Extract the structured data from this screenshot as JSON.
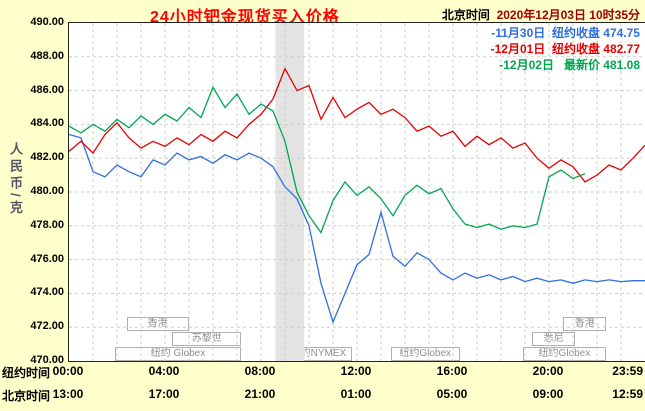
{
  "title": "24小时钯金现货买入价格",
  "timestamp": {
    "label": "北京时间  ",
    "value": "2020年12月03日 10时35分"
  },
  "colors": {
    "background": "#ffffcc",
    "plot_background": "#ffffff",
    "grid": "#c8d0c8",
    "band": "#e3e3e3",
    "title": "#ff0000",
    "series_blue": "#2f6fdf",
    "series_red": "#e80000",
    "series_green": "#00a651"
  },
  "chart_data": {
    "type": "line",
    "title": "24小时钯金现货买入价格",
    "ylabel": "人民币/克",
    "ylim": [
      470,
      490
    ],
    "y_ticks": [
      "490.00",
      "488.00",
      "486.00",
      "484.00",
      "482.00",
      "480.00",
      "478.00",
      "476.00",
      "474.00",
      "472.00",
      "470.00"
    ],
    "x_hours_range": [
      0,
      24
    ],
    "tick_hours": [
      0,
      4,
      8,
      12,
      16,
      20,
      24
    ],
    "x_axis_rows": [
      {
        "label": "纽约时间",
        "ticks": [
          "00:00",
          "04:00",
          "08:00",
          "12:00",
          "16:00",
          "20:00",
          "23:59"
        ]
      },
      {
        "label": "北京时间",
        "ticks": [
          "13:00",
          "17:00",
          "21:00",
          "01:00",
          "05:00",
          "09:00",
          "12:59"
        ]
      }
    ],
    "grid": true,
    "legend_position": "top-right",
    "shaded_band_hours": [
      8.6,
      9.8
    ],
    "series": [
      {
        "name": "11月30日",
        "status": "纽约收盘",
        "close": "474.75",
        "color": "#2f6fdf",
        "start_hour": 0,
        "step_hours": 0.5,
        "values": [
          483.4,
          483.2,
          481.2,
          480.9,
          481.6,
          481.2,
          480.9,
          481.9,
          481.6,
          482.3,
          481.9,
          482.1,
          481.7,
          482.2,
          481.9,
          482.3,
          482.0,
          481.5,
          480.3,
          479.6,
          478.0,
          474.6,
          472.3,
          474.0,
          475.7,
          476.3,
          478.8,
          476.2,
          475.6,
          476.4,
          476.0,
          475.2,
          474.8,
          475.2,
          474.9,
          475.1,
          474.8,
          475.0,
          474.7,
          474.9,
          474.7,
          474.8,
          474.6,
          474.8,
          474.7,
          474.8,
          474.7,
          474.75,
          474.75
        ]
      },
      {
        "name": "12月01日",
        "status": "纽约收盘",
        "close": "482.77",
        "color": "#e80000",
        "start_hour": 0,
        "step_hours": 0.5,
        "values": [
          482.4,
          483.0,
          482.3,
          483.4,
          484.1,
          483.2,
          482.6,
          483.0,
          482.7,
          483.2,
          482.8,
          483.4,
          483.0,
          483.6,
          483.2,
          484.0,
          484.6,
          485.5,
          487.3,
          486.0,
          486.3,
          484.3,
          485.6,
          484.4,
          484.9,
          485.3,
          484.6,
          484.9,
          484.4,
          483.6,
          483.9,
          483.3,
          483.6,
          482.7,
          483.3,
          482.8,
          483.2,
          482.6,
          482.9,
          482.0,
          481.4,
          481.9,
          481.5,
          480.6,
          481.0,
          481.6,
          481.3,
          482.0,
          482.77
        ]
      },
      {
        "name": "12月02日",
        "status": " 最新价",
        "close": "481.08",
        "color": "#00a651",
        "start_hour": 0,
        "step_hours": 0.5,
        "values": [
          483.9,
          483.5,
          484.0,
          483.6,
          484.3,
          483.8,
          484.5,
          484.0,
          484.6,
          484.2,
          485.0,
          484.4,
          486.2,
          485.0,
          485.8,
          484.6,
          485.2,
          484.8,
          483.0,
          480.0,
          478.6,
          477.6,
          479.5,
          480.6,
          479.8,
          480.3,
          479.6,
          478.6,
          479.8,
          480.4,
          479.9,
          480.2,
          479.0,
          478.1,
          477.9,
          478.1,
          477.8,
          478.0,
          477.9,
          478.1,
          480.9,
          481.3,
          480.8,
          481.08
        ]
      }
    ],
    "sessions": [
      {
        "label": "香港",
        "row": 0,
        "from_hour": 2.4,
        "to_hour": 4.9
      },
      {
        "label": "苏黎世",
        "row": 1,
        "from_hour": 4.3,
        "to_hour": 7.1
      },
      {
        "label": "纽约 Globex",
        "row": 2,
        "from_hour": 1.9,
        "to_hour": 7.1
      },
      {
        "label": "纽约NYMEX",
        "row": 2,
        "from_hour": 9.0,
        "to_hour": 11.7
      },
      {
        "label": "纽约Globex",
        "row": 2,
        "from_hour": 13.4,
        "to_hour": 16.2
      },
      {
        "label": "悉尼",
        "row": 1,
        "from_hour": 19.3,
        "to_hour": 21.0
      },
      {
        "label": "香港",
        "row": 0,
        "from_hour": 20.6,
        "to_hour": 22.3
      },
      {
        "label": "纽约Globex",
        "row": 2,
        "from_hour": 18.9,
        "to_hour": 22.3
      }
    ]
  }
}
